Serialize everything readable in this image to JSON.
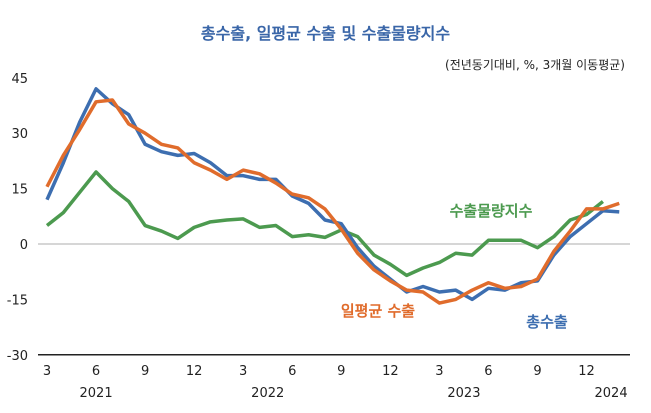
{
  "chart_data": {
    "type": "line",
    "title": "총수출, 일평균 수출 및 수출물량지수",
    "subtitle": "(전년동기대비, %, 3개월 이동평균)",
    "ylim": [
      -30,
      45
    ],
    "yticks": [
      45,
      30,
      15,
      0,
      -15,
      -30
    ],
    "x_start": "2021-03",
    "xtick_labels": [
      "3",
      "6",
      "9",
      "12",
      "3",
      "6",
      "9",
      "12",
      "3",
      "6",
      "9",
      "12"
    ],
    "year_labels": [
      "2021",
      "2022",
      "2023",
      "2024"
    ],
    "grid": false,
    "series": [
      {
        "name": "총수출",
        "color": "#3d6eb0",
        "values": [
          12,
          22,
          33,
          42,
          38,
          35,
          27,
          25,
          24,
          24.5,
          22,
          18.5,
          18.5,
          17.5,
          17.5,
          13,
          11,
          6.5,
          5.5,
          -1,
          -6,
          -9.5,
          -13,
          -11.5,
          -13,
          -12.5,
          -15,
          -12,
          -12.5,
          -10.5,
          -10,
          -3,
          2,
          5.5,
          9,
          8.7
        ]
      },
      {
        "name": "일평균 수출",
        "color": "#e06c2c",
        "values": [
          15.5,
          24,
          31,
          38.5,
          39,
          32.5,
          30,
          27,
          26,
          22,
          20,
          17.5,
          20,
          19,
          16.5,
          13.5,
          12.5,
          9.5,
          4,
          -2.5,
          -7,
          -10,
          -12.5,
          -13,
          -16,
          -15,
          -12.5,
          -10.5,
          -12,
          -11.5,
          -9.5,
          -2,
          3.5,
          9.5,
          9.5,
          11
        ]
      },
      {
        "name": "수출물량지수",
        "color": "#4c9a4f",
        "values": [
          5,
          8.5,
          14,
          19.5,
          15,
          11.5,
          5,
          3.5,
          1.5,
          4.5,
          6,
          6.5,
          6.8,
          4.5,
          5,
          2,
          2.5,
          1.8,
          3.8,
          2,
          -3,
          -5.5,
          -8.5,
          -6.5,
          -5,
          -2.5,
          -3,
          1,
          1,
          1,
          -1,
          2,
          6.5,
          8,
          11.5
        ]
      }
    ]
  }
}
